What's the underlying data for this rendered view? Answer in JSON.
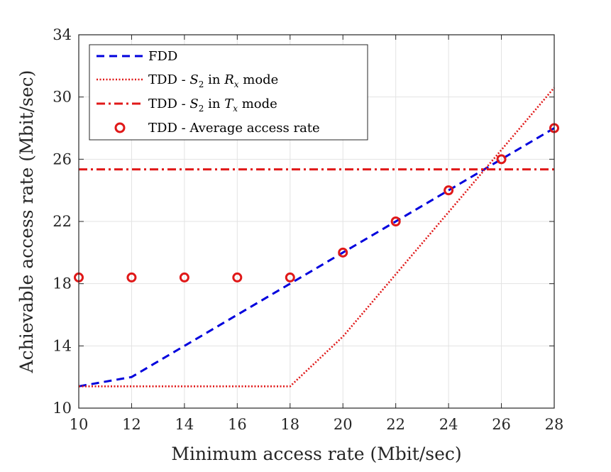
{
  "chart_data": {
    "type": "line",
    "xlabel": "Minimum access rate (Mbit/sec)",
    "ylabel": "Achievable access rate (Mbit/sec)",
    "xlim": [
      10,
      28
    ],
    "ylim": [
      10,
      34
    ],
    "xticks": [
      10,
      12,
      14,
      16,
      18,
      20,
      22,
      24,
      26,
      28
    ],
    "yticks": [
      10,
      14,
      18,
      22,
      26,
      30,
      34
    ],
    "grid": true,
    "legend_position": "top-left",
    "series": [
      {
        "name": "FDD",
        "label_main": "FDD",
        "style": "dashed",
        "color": "#0000dd",
        "x": [
          10,
          12,
          14,
          16,
          18,
          20,
          22,
          24,
          26,
          28
        ],
        "y": [
          11.4,
          12.0,
          14.0,
          16.0,
          18.0,
          20.0,
          22.0,
          24.0,
          26.0,
          28.0
        ]
      },
      {
        "name": "TDD - S2 in Rx mode",
        "label_pre": "TDD - ",
        "label_var": "S",
        "label_sub": "2",
        "label_mid": " in ",
        "label_var2": "R",
        "label_sub2": "x",
        "label_post": " mode",
        "style": "dotted",
        "color": "#e01818",
        "x": [
          10,
          12,
          14,
          16,
          18,
          20,
          22,
          24,
          26,
          28
        ],
        "y": [
          11.4,
          11.4,
          11.4,
          11.4,
          11.4,
          14.6,
          18.6,
          22.6,
          26.6,
          30.6
        ]
      },
      {
        "name": "TDD - S2 in Tx mode",
        "label_pre": "TDD - ",
        "label_var": "S",
        "label_sub": "2",
        "label_mid": " in ",
        "label_var2": "T",
        "label_sub2": "x",
        "label_post": " mode",
        "style": "dashdot",
        "color": "#e01818",
        "x": [
          10,
          28
        ],
        "y": [
          25.35,
          25.35
        ]
      },
      {
        "name": "TDD - Average access rate",
        "label_main": "TDD - Average access rate",
        "style": "markers",
        "color": "#e01818",
        "x": [
          10,
          12,
          14,
          16,
          18,
          20,
          22,
          24,
          26,
          28
        ],
        "y": [
          18.4,
          18.4,
          18.4,
          18.4,
          18.4,
          20.0,
          22.0,
          24.0,
          26.0,
          28.0
        ]
      }
    ]
  }
}
